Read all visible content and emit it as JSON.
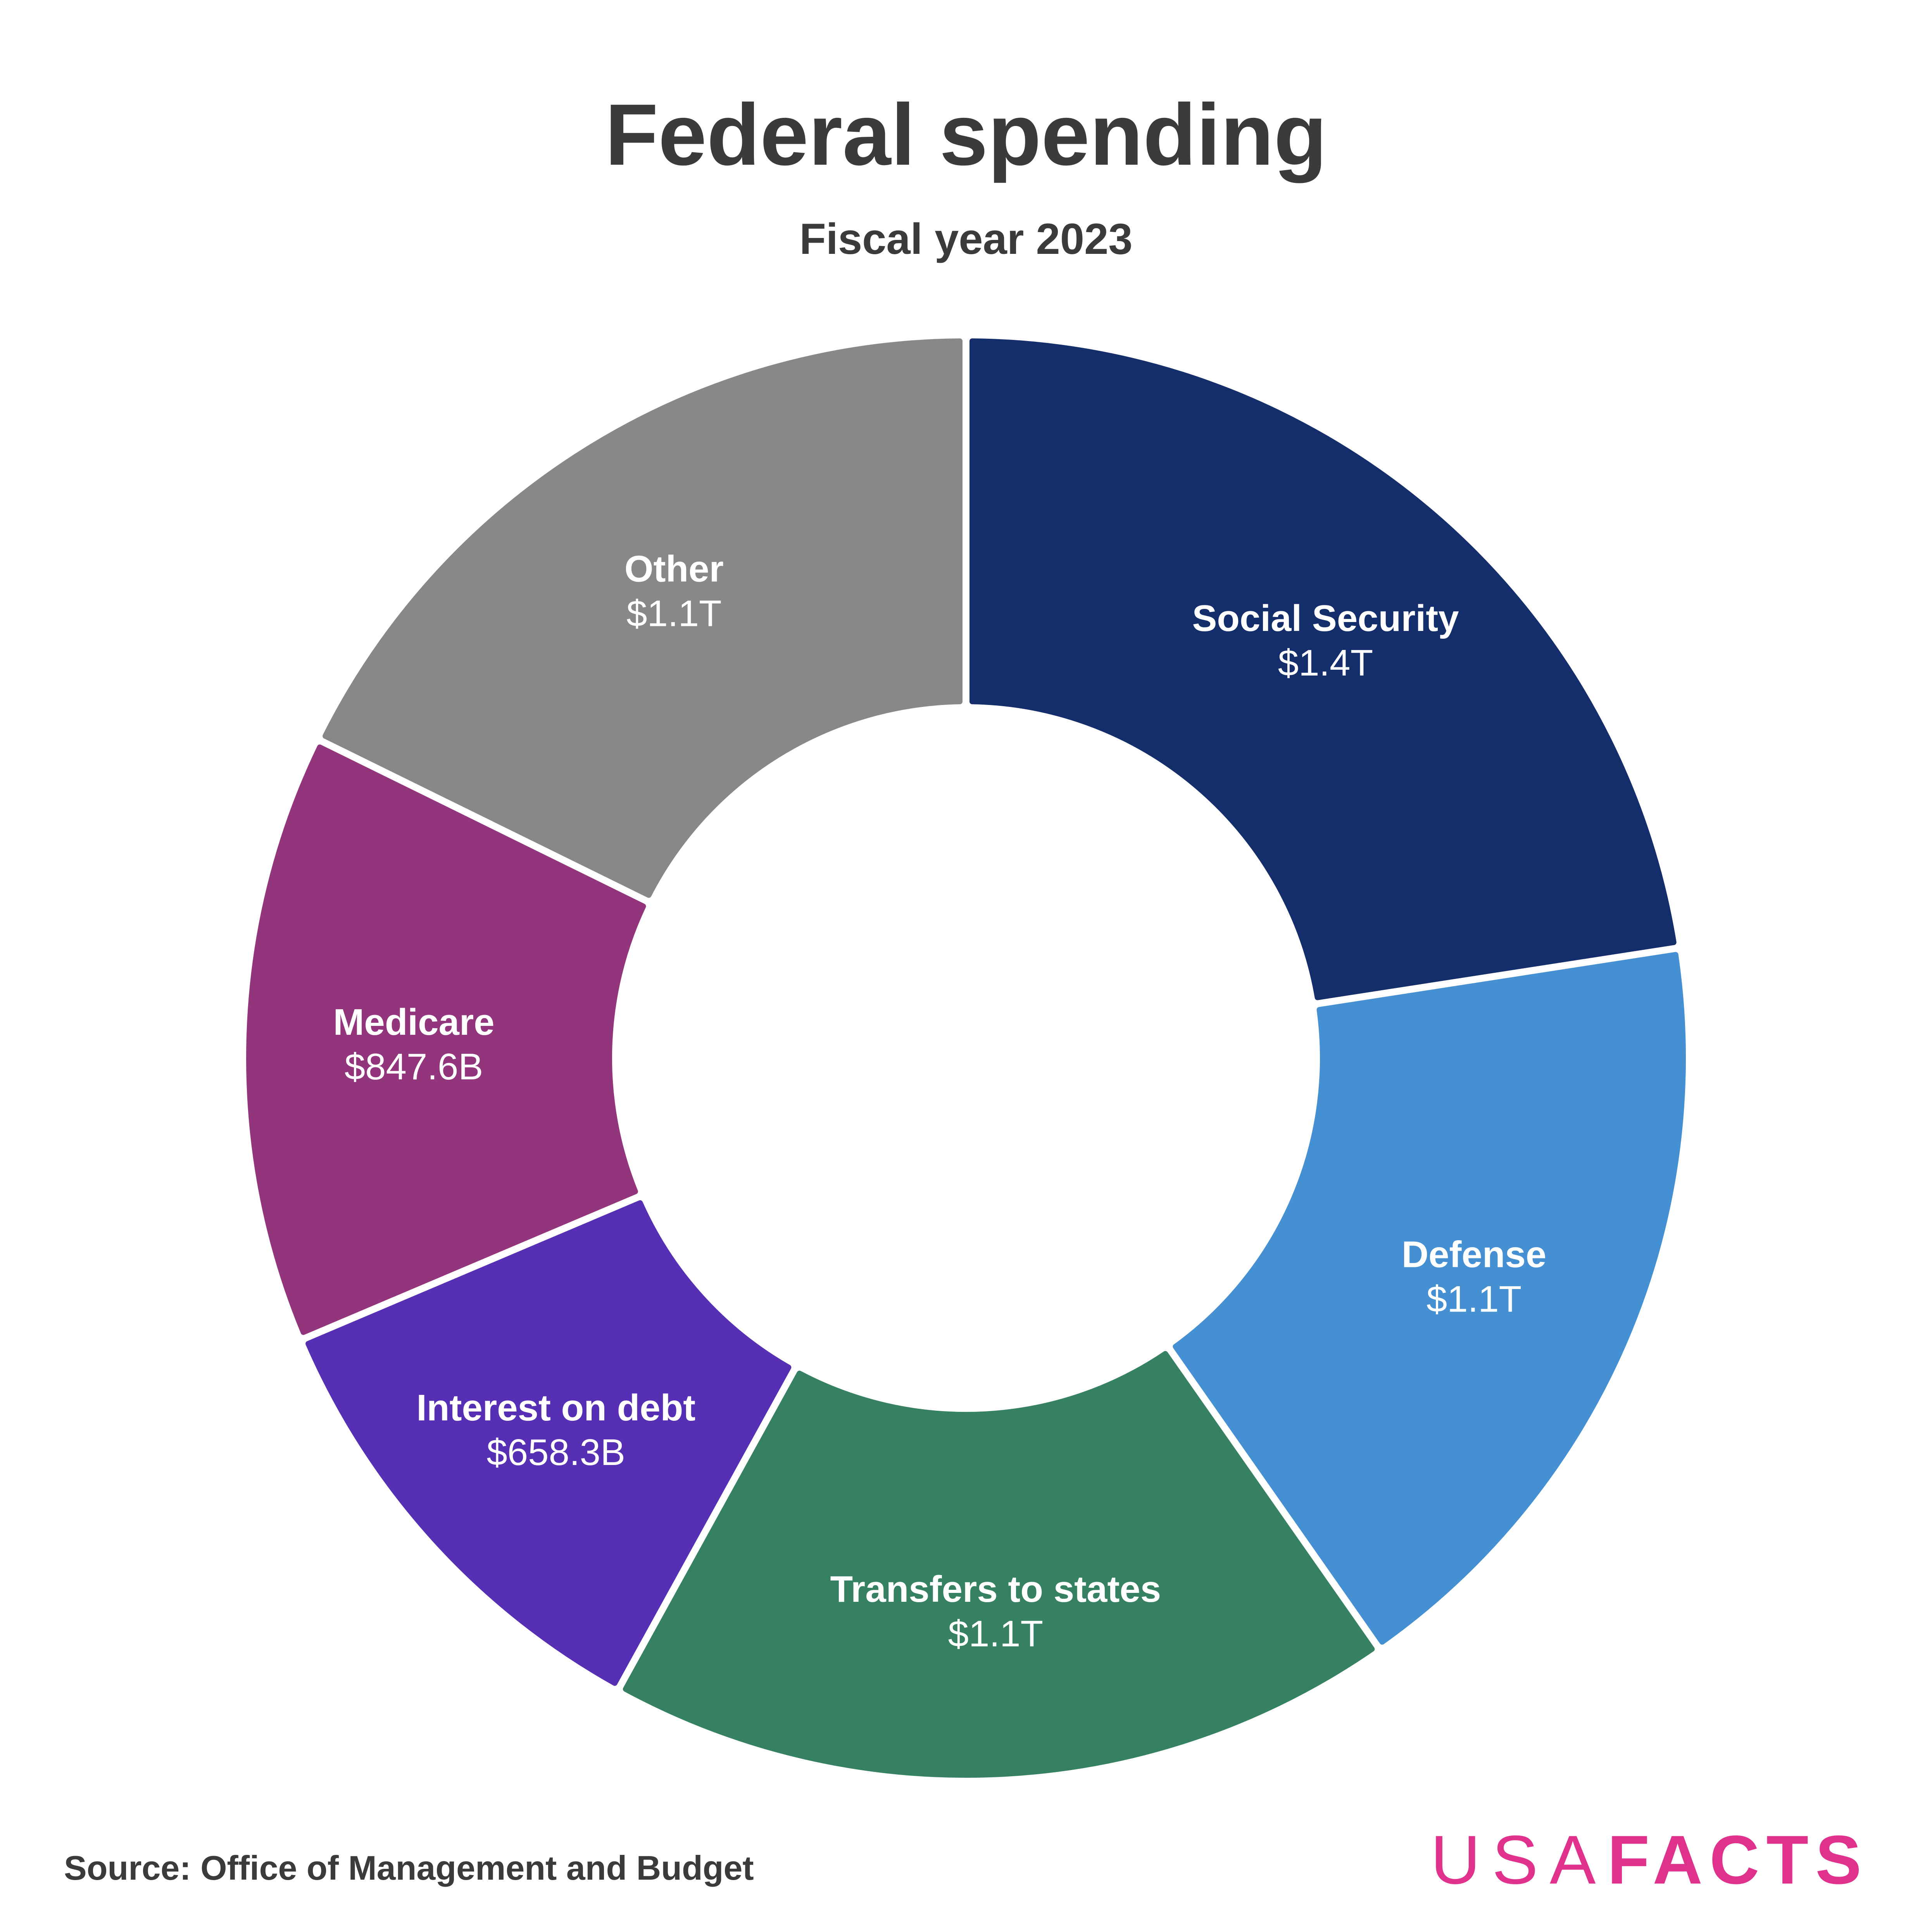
{
  "chart_data": {
    "type": "pie",
    "variant": "donut",
    "title": "Federal spending",
    "subtitle": "Fiscal year 2023",
    "slices": [
      {
        "name": "Social Security",
        "value_label": "$1.4T",
        "value": 1.4,
        "color": "#142d6b"
      },
      {
        "name": "Defense",
        "value_label": "$1.1T",
        "value": 1.1,
        "color": "#4590d2"
      },
      {
        "name": "Transfers to states",
        "value_label": "$1.1T",
        "value": 1.1,
        "color": "#378163"
      },
      {
        "name": "Interest on debt",
        "value_label": "$658.3B",
        "value": 0.6583,
        "color": "#562fb4"
      },
      {
        "name": "Medicare",
        "value_label": "$847.6B",
        "value": 0.8476,
        "color": "#93357c"
      },
      {
        "name": "Other",
        "value_label": "$1.1T",
        "value": 1.1,
        "color": "#888888"
      }
    ],
    "units": "trillions of dollars",
    "source": "Source: Office of Management and Budget"
  },
  "branding": {
    "logo_part1": "USA",
    "logo_part2": "FACTS",
    "logo_color": "#e0318d"
  }
}
